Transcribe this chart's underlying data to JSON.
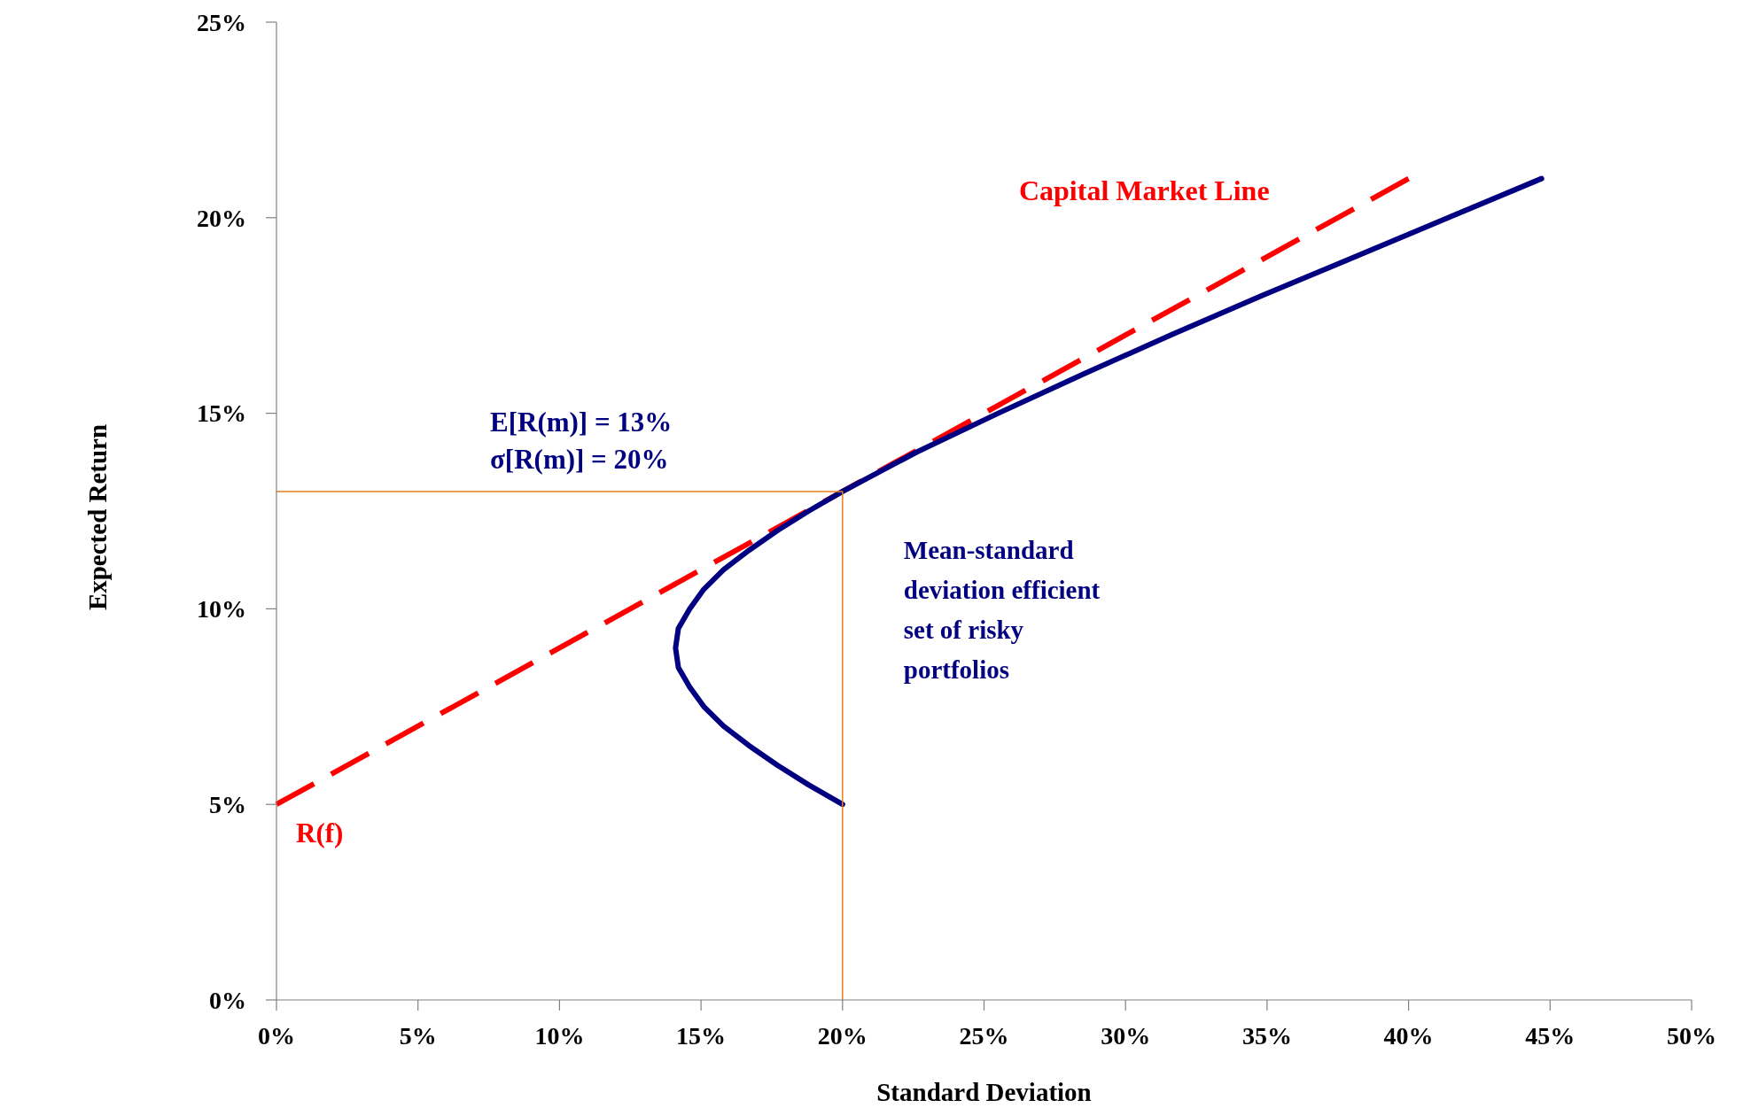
{
  "chart_data": {
    "type": "line",
    "xlabel": "Standard Deviation",
    "ylabel": "Expected Return",
    "xlim": [
      0,
      50
    ],
    "ylim": [
      0,
      25
    ],
    "xticks": [
      {
        "value": 0,
        "label": "0%"
      },
      {
        "value": 5,
        "label": "5%"
      },
      {
        "value": 10,
        "label": "10%"
      },
      {
        "value": 15,
        "label": "15%"
      },
      {
        "value": 20,
        "label": "20%"
      },
      {
        "value": 25,
        "label": "25%"
      },
      {
        "value": 30,
        "label": "30%"
      },
      {
        "value": 35,
        "label": "35%"
      },
      {
        "value": 40,
        "label": "40%"
      },
      {
        "value": 45,
        "label": "45%"
      },
      {
        "value": 50,
        "label": "50%"
      }
    ],
    "yticks": [
      {
        "value": 0,
        "label": "0%"
      },
      {
        "value": 5,
        "label": "5%"
      },
      {
        "value": 10,
        "label": "10%"
      },
      {
        "value": 15,
        "label": "15%"
      },
      {
        "value": 20,
        "label": "20%"
      },
      {
        "value": 25,
        "label": "25%"
      }
    ],
    "marker": "none",
    "series": [
      {
        "name": "Capital Market Line",
        "color": "#ff0000",
        "line_style": "dashed",
        "x": [
          0,
          40
        ],
        "values": [
          5,
          21
        ]
      },
      {
        "name": "Mean-standard deviation efficient set of risky portfolios",
        "color": "#000080",
        "line_style": "solid",
        "x": [
          20,
          18.8,
          17.7,
          16.7,
          15.8,
          15.1,
          14.6,
          14.2,
          14.1,
          14.2,
          14.6,
          15.1,
          15.8,
          16.7,
          17.7,
          18.8,
          20,
          22.6,
          25.5,
          28.5,
          31.6,
          34.8,
          38.1,
          41.4,
          44.7
        ],
        "values": [
          5,
          5.5,
          6,
          6.5,
          7,
          7.5,
          8,
          8.5,
          9,
          9.5,
          10,
          10.5,
          11,
          11.5,
          12,
          12.5,
          13,
          14,
          15,
          16,
          17,
          18,
          19,
          20,
          21
        ]
      },
      {
        "color": "#e8801e",
        "line_style": "solid",
        "x": [
          0,
          20,
          20
        ],
        "values": [
          13,
          13,
          0
        ]
      }
    ],
    "annotations": [
      "E[R(m)] = 13%",
      "σ[R(m)] = 20%",
      "R(f)"
    ]
  }
}
